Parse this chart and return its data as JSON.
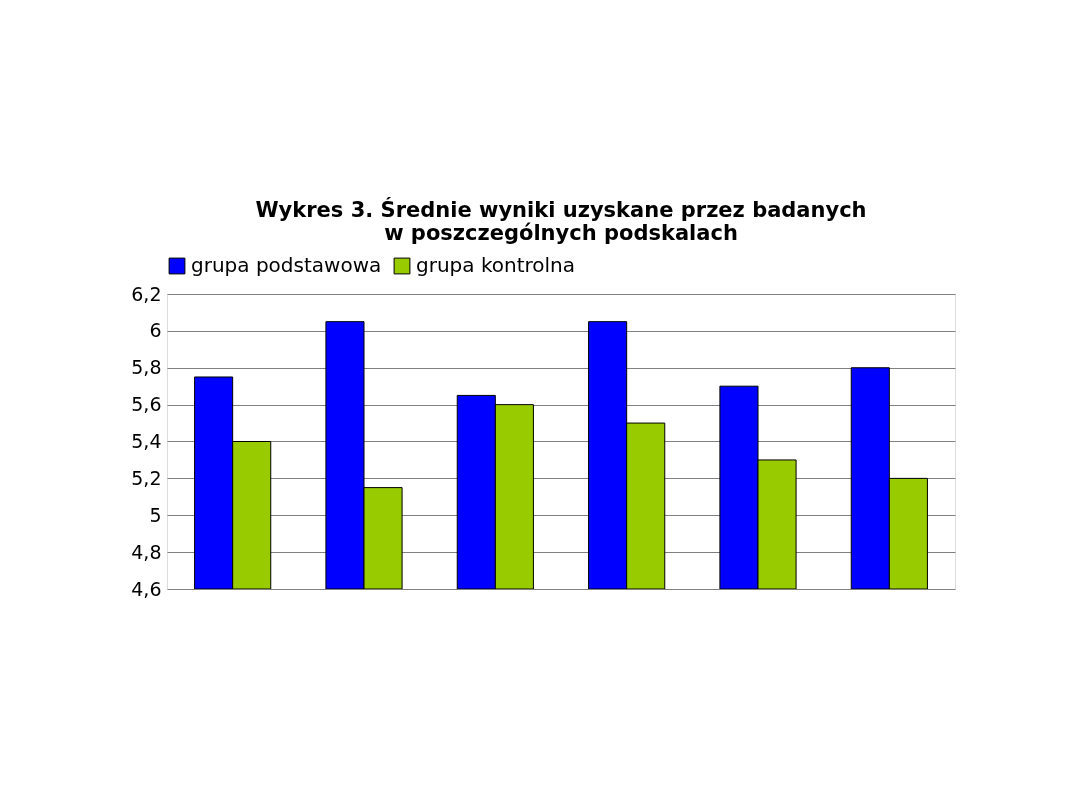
{
  "chart_data": {
    "type": "bar",
    "title": "Wykres 3. Średnie wyniki uzyskane przez badanych\nw poszczególnych podskalach",
    "categories": [
      null,
      null,
      null,
      null,
      null,
      null
    ],
    "series": [
      {
        "name": "grupa podstawowa",
        "color": "#0000ff",
        "values": [
          5.75,
          6.05,
          5.65,
          6.05,
          5.7,
          5.8
        ]
      },
      {
        "name": "grupa kontrolna",
        "color": "#99cc00",
        "values": [
          5.4,
          5.15,
          5.6,
          5.5,
          5.3,
          5.2
        ]
      }
    ],
    "ylim": [
      4.6,
      6.2
    ],
    "yticks": [
      {
        "value": 4.6,
        "label": "4,6"
      },
      {
        "value": 4.8,
        "label": "4,8"
      },
      5,
      {
        "value": 5.2,
        "label": "5,2"
      },
      {
        "value": 5.4,
        "label": "5,4"
      },
      {
        "value": 5.6,
        "label": "5,6"
      },
      {
        "value": 5.8,
        "label": "5,8"
      },
      6,
      {
        "value": 6.2,
        "label": "6,2"
      }
    ],
    "grid": "y",
    "legend": "top",
    "tick_labels": "y"
  }
}
